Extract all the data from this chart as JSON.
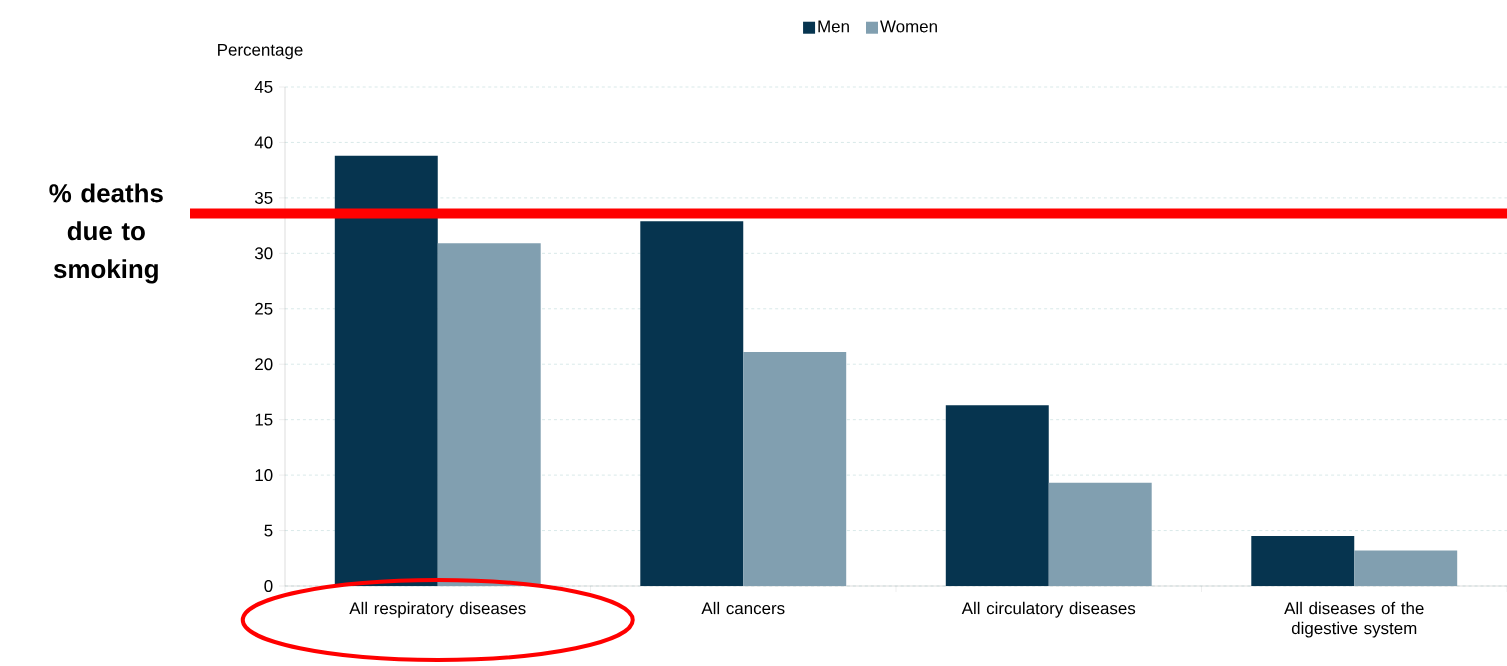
{
  "chart_data": {
    "type": "bar",
    "ylabel": "Percentage",
    "categories": [
      "All respiratory diseases",
      "All cancers",
      "All circulatory diseases",
      "All diseases of the digestive system"
    ],
    "series": [
      {
        "name": "Men",
        "color": "#06344f",
        "values": [
          38.8,
          32.9,
          16.3,
          4.5
        ]
      },
      {
        "name": "Women",
        "color": "#819fb0",
        "values": [
          30.9,
          21.1,
          9.3,
          3.2
        ]
      }
    ],
    "ylim": [
      0,
      45
    ],
    "yticks": [
      0,
      5,
      10,
      15,
      20,
      25,
      30,
      35,
      40,
      45
    ],
    "grid": "y",
    "legend": "top",
    "ref_lines": [
      {
        "axis": "y",
        "value": 33.6,
        "label": "% deaths due to smoking",
        "color": "#ff0000"
      }
    ]
  }
}
